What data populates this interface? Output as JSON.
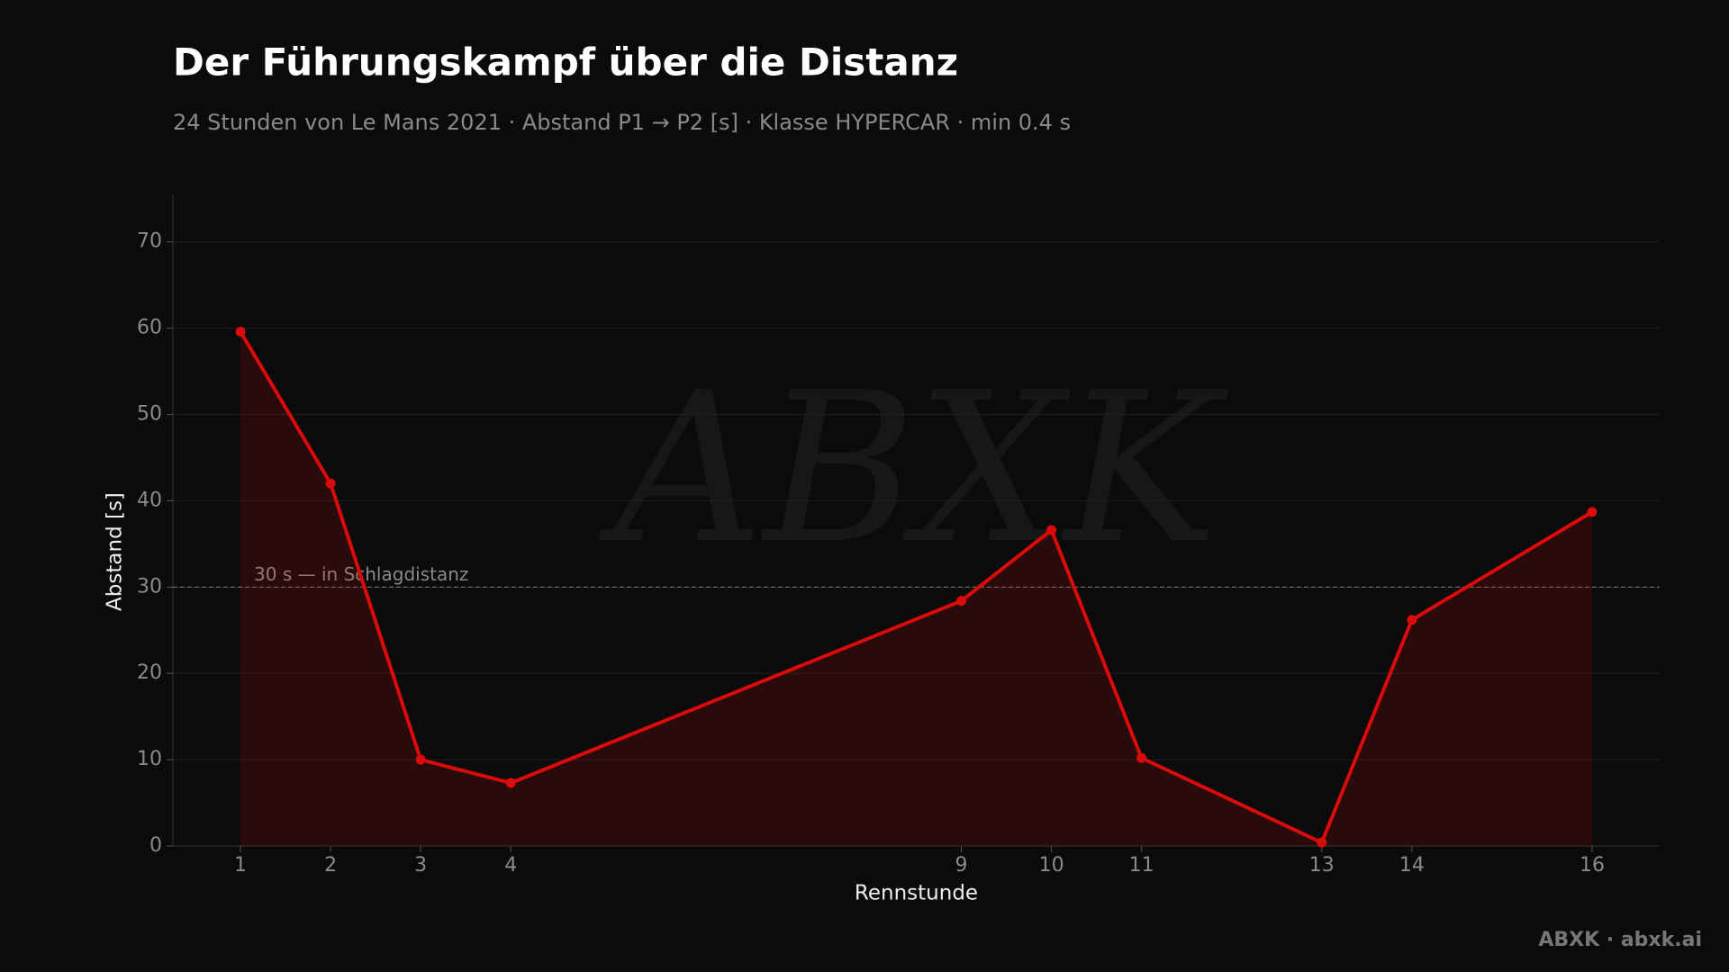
{
  "chart_data": {
    "type": "line",
    "title": "Der Führungskampf über die Distanz",
    "subtitle": "24 Stunden von Le Mans 2021 · Abstand P1 → P2 [s] · Klasse HYPERCAR · min 0.4 s",
    "x_label": "Rennstunde",
    "y_label": "Abstand [s]",
    "x": [
      1,
      2,
      3,
      4,
      9,
      10,
      11,
      13,
      14,
      16
    ],
    "values": [
      59.6,
      42,
      10,
      7.3,
      28.4,
      36.6,
      10.2,
      0.4,
      26.2,
      38.7
    ],
    "color": "#d90b0b",
    "xlim": [
      0.25,
      16.75
    ],
    "xticks": [
      1,
      2,
      3,
      4,
      9,
      10,
      11,
      13,
      14,
      16
    ],
    "ylim": [
      0,
      75.5
    ],
    "yticks": [
      0,
      10,
      20,
      30,
      40,
      50,
      60,
      70
    ],
    "grid": true,
    "reference_line": {
      "value": 30,
      "label": "30 s — in Schlagdistanz"
    },
    "watermark": "ABXK",
    "footer": "ABXK · abxk.ai"
  }
}
